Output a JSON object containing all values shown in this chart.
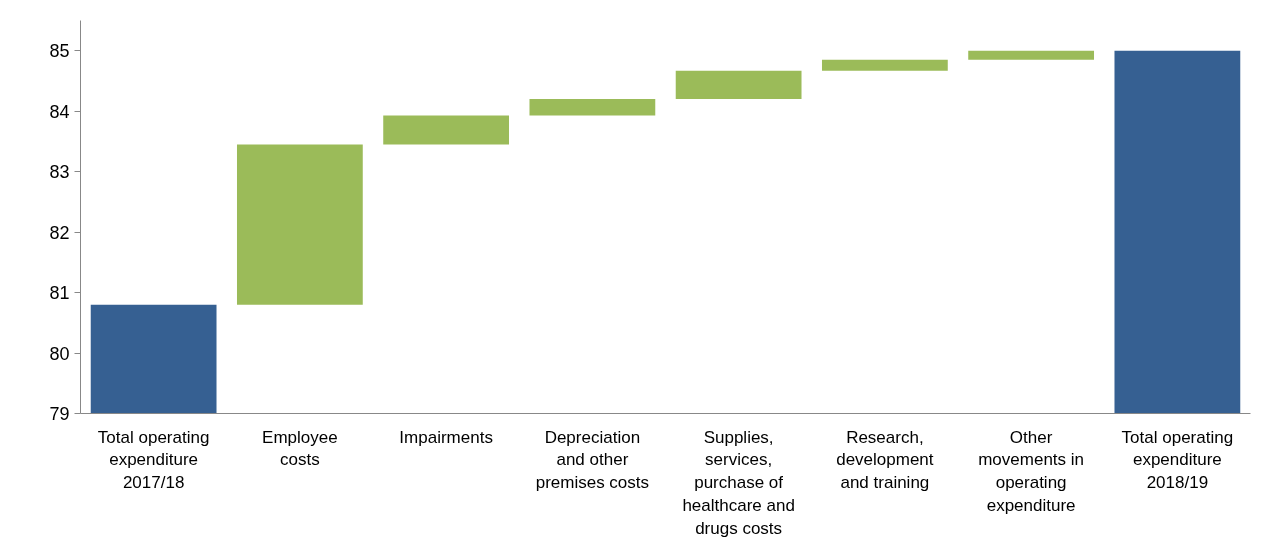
{
  "chart_data": {
    "type": "bar",
    "categories": [
      "Total operating\nexpenditure\n2017/18",
      "Employee\ncosts",
      "Impairments",
      "Depreciation\nand other\npremises costs",
      "Supplies,\nservices,\npurchase of\nhealthcare and\ndrugs costs",
      "Research,\ndevelopment\nand training",
      "Other\nmovements in\noperating\nexpenditure",
      "Total operating\nexpenditure\n2018/19"
    ],
    "values": [
      80.8,
      2.65,
      0.48,
      0.27,
      0.47,
      0.18,
      0.15,
      85.0
    ],
    "base": [
      null,
      80.8,
      83.45,
      83.93,
      84.2,
      84.67,
      84.85,
      null
    ],
    "colors": [
      "#366092",
      "#9bbb59",
      "#9bbb59",
      "#9bbb59",
      "#9bbb59",
      "#9bbb59",
      "#9bbb59",
      "#366092"
    ],
    "ylim": [
      79,
      85.5
    ],
    "yticks": [
      79,
      80,
      81,
      82,
      83,
      84,
      85
    ],
    "grid": false
  }
}
